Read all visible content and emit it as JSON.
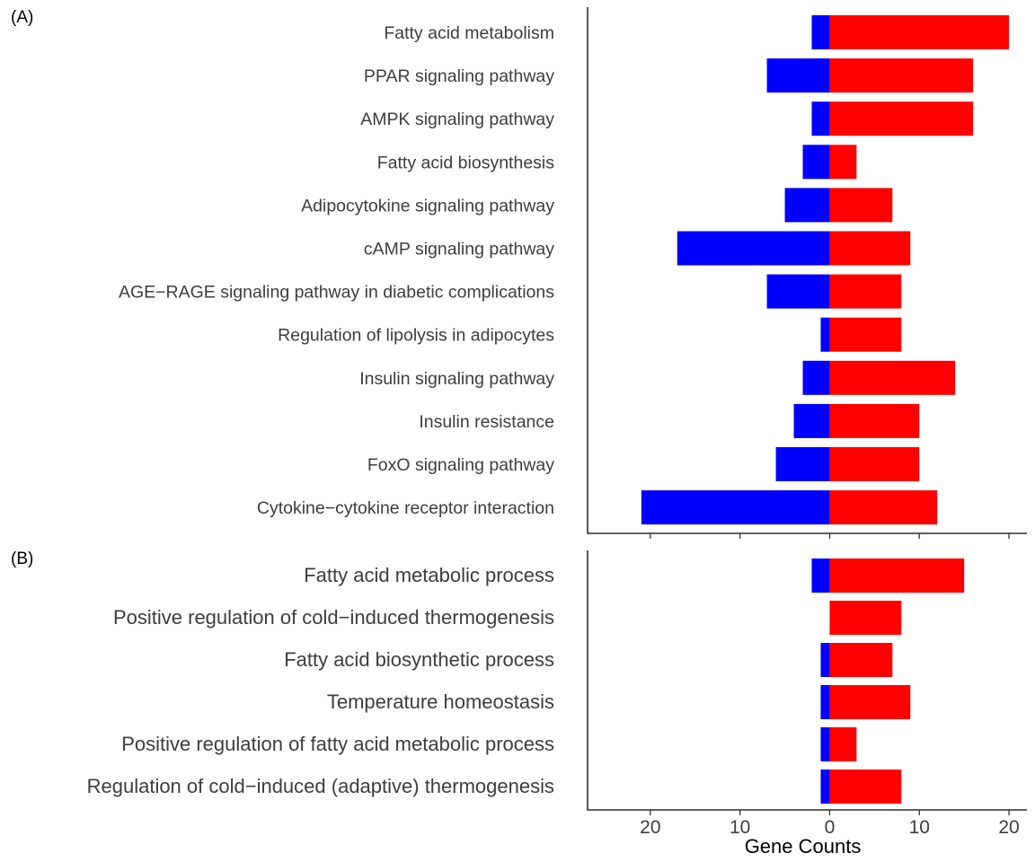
{
  "chart_data": [
    {
      "type": "bar",
      "orientation": "horizontal",
      "panel_label": "(A)",
      "categories": [
        "Fatty acid metabolism",
        "PPAR signaling pathway",
        "AMPK signaling pathway",
        "Fatty acid biosynthesis",
        "Adipocytokine signaling pathway ",
        "cAMP signaling pathway",
        "AGE−RAGE signaling pathway in diabetic complications ",
        "Regulation of lipolysis in adipocytes ",
        "Insulin signaling pathway ",
        "Insulin resistance",
        "FoxO signaling pathway",
        "Cytokine−cytokine receptor interaction "
      ],
      "series": [
        {
          "values": [
            2,
            7,
            2,
            3,
            5,
            17,
            7,
            1,
            3,
            4,
            6,
            21
          ]
        },
        {
          "values": [
            20,
            16,
            16,
            3,
            7,
            9,
            8,
            8,
            14,
            10,
            10,
            12
          ]
        }
      ],
      "xlim": [
        -27,
        22
      ],
      "ticks": [
        -20,
        -10,
        0,
        10,
        20
      ],
      "tick_labels": [
        "20",
        "10",
        "0",
        "10",
        "20"
      ],
      "colors": [
        "#0000ff",
        "#ff0000"
      ]
    },
    {
      "type": "bar",
      "orientation": "horizontal",
      "panel_label": "(B)",
      "categories": [
        "Fatty acid metabolic process",
        "Positive regulation of cold−induced thermogenesis ",
        "Fatty acid biosynthetic process ",
        "Temperature homeostasis",
        "Positive regulation of fatty acid metabolic process ",
        "Regulation of cold−induced (adaptive)  thermogenesis "
      ],
      "series": [
        {
          "values": [
            2,
            0,
            1,
            1,
            1,
            1
          ]
        },
        {
          "values": [
            15,
            8,
            7,
            9,
            3,
            8
          ]
        }
      ],
      "xlim": [
        -27,
        22
      ],
      "ticks": [
        -20,
        -10,
        0,
        10,
        20
      ],
      "tick_labels": [
        "20",
        "10",
        "0",
        "10",
        "20"
      ],
      "xlabel": "Gene Counts",
      "colors": [
        "#0000ff",
        "#ff0000"
      ]
    }
  ]
}
